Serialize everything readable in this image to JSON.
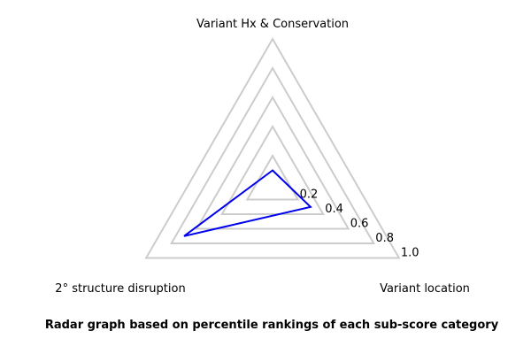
{
  "chart_data": {
    "type": "radar",
    "title": "Radar graph based on percentile rankings of each sub-score category",
    "axes": [
      "Variant Hx & Conservation",
      "Variant location",
      "2° structure disruption"
    ],
    "rlim": [
      0,
      1.0
    ],
    "ticks": [
      0.2,
      0.4,
      0.6,
      0.8,
      1.0
    ],
    "tick_labels": [
      "0.2",
      "0.4",
      "0.6",
      "0.8",
      "1.0"
    ],
    "grid": true,
    "series": [
      {
        "values": [
          0.1,
          0.3,
          0.7
        ],
        "color": "#0000ee"
      }
    ]
  }
}
